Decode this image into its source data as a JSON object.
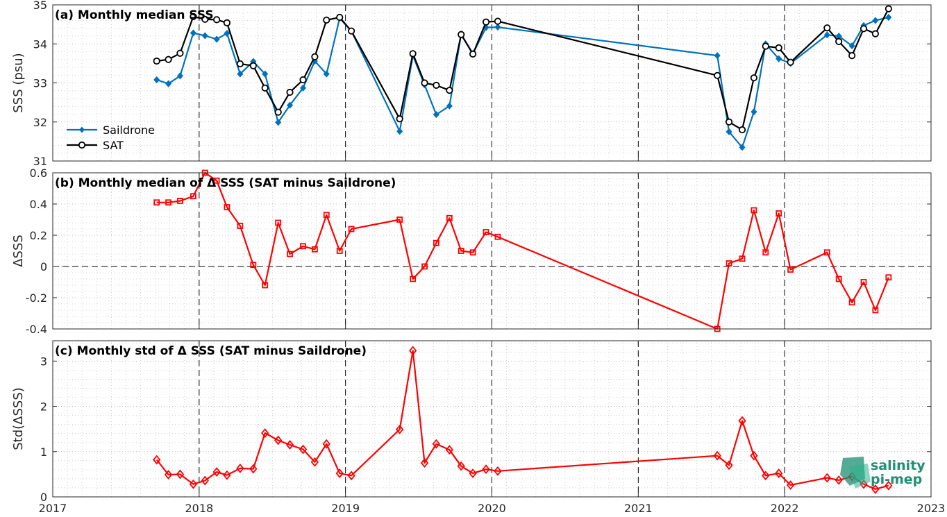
{
  "chart_data": [
    {
      "type": "line",
      "title": "(a) Monthly median SSS",
      "ylabel": "SSS (psu)",
      "xlim": [
        2017,
        2023
      ],
      "ylim": [
        31,
        35
      ],
      "yticks": [
        "31",
        "32",
        "33",
        "34",
        "35"
      ],
      "grid": true,
      "legend_position": "bottom-left",
      "x": [
        2017.71,
        2017.79,
        2017.87,
        2017.96,
        2018.04,
        2018.12,
        2018.19,
        2018.28,
        2018.37,
        2018.45,
        2018.54,
        2018.62,
        2018.71,
        2018.79,
        2018.87,
        2018.96,
        2019.04,
        2019.37,
        2019.46,
        2019.54,
        2019.62,
        2019.71,
        2019.79,
        2019.87,
        2019.96,
        2020.04,
        2021.54,
        2021.62,
        2021.71,
        2021.79,
        2021.87,
        2021.96,
        2022.04,
        2022.29,
        2022.37,
        2022.46,
        2022.54,
        2022.62,
        2022.71
      ],
      "series": [
        {
          "name": "Saildrone",
          "color": "#0072BD",
          "marker": "diamond-filled",
          "values": [
            33.08,
            32.98,
            33.18,
            34.28,
            34.21,
            34.12,
            34.27,
            33.23,
            33.55,
            33.23,
            31.99,
            32.43,
            32.87,
            33.56,
            33.23,
            34.66,
            34.33,
            31.76,
            33.7,
            32.95,
            32.19,
            32.41,
            34.25,
            33.75,
            34.42,
            34.43,
            33.7,
            31.75,
            31.35,
            32.26,
            34.0,
            33.62,
            33.5,
            34.23,
            34.2,
            33.95,
            34.47,
            34.6,
            34.68
          ]
        },
        {
          "name": "SAT",
          "color": "#000000",
          "marker": "circle-open",
          "values": [
            33.56,
            33.6,
            33.76,
            34.7,
            34.63,
            34.62,
            34.54,
            33.49,
            33.44,
            32.87,
            32.25,
            32.76,
            33.08,
            33.67,
            34.61,
            34.68,
            34.33,
            32.08,
            33.75,
            33.0,
            32.94,
            32.81,
            34.24,
            33.74,
            34.56,
            34.58,
            33.19,
            32.0,
            31.8,
            33.13,
            33.94,
            33.9,
            33.53,
            34.41,
            34.06,
            33.7,
            34.39,
            34.26,
            34.9
          ]
        }
      ]
    },
    {
      "type": "line",
      "title": "(b) Monthly median of Δ SSS (SAT minus Saildrone)",
      "ylabel": "ΔSSS",
      "xlim": [
        2017,
        2023
      ],
      "ylim": [
        -0.4,
        0.6
      ],
      "yticks": [
        "-0.4",
        "-0.2",
        "0",
        "0.2",
        "0.4",
        "0.6"
      ],
      "zero_line": "dashed",
      "grid": true,
      "x": [
        2017.71,
        2017.79,
        2017.87,
        2017.96,
        2018.04,
        2018.12,
        2018.19,
        2018.28,
        2018.37,
        2018.45,
        2018.54,
        2018.62,
        2018.71,
        2018.79,
        2018.87,
        2018.96,
        2019.04,
        2019.37,
        2019.46,
        2019.54,
        2019.62,
        2019.71,
        2019.79,
        2019.87,
        2019.96,
        2020.04,
        2021.54,
        2021.62,
        2021.71,
        2021.79,
        2021.87,
        2021.96,
        2022.04,
        2022.29,
        2022.37,
        2022.46,
        2022.54,
        2022.62,
        2022.71
      ],
      "series": [
        {
          "color": "#FF0000",
          "marker": "square-open",
          "values": [
            0.41,
            0.41,
            0.42,
            0.45,
            0.6,
            0.55,
            0.38,
            0.26,
            0.01,
            -0.12,
            0.28,
            0.08,
            0.13,
            0.11,
            0.33,
            0.1,
            0.24,
            0.3,
            -0.08,
            0.0,
            0.15,
            0.31,
            0.1,
            0.09,
            0.22,
            0.19,
            -0.4,
            0.02,
            0.05,
            0.36,
            0.09,
            0.34,
            -0.02,
            0.09,
            -0.08,
            -0.23,
            -0.1,
            -0.28,
            -0.07
          ]
        }
      ]
    },
    {
      "type": "line",
      "title": "(c) Monthly std of Δ SSS (SAT minus Saildrone)",
      "ylabel": "Std(ΔSSS)",
      "xlabel": "",
      "xlim": [
        2017,
        2023
      ],
      "ylim": [
        0,
        3.45
      ],
      "yticks": [
        "0",
        "1",
        "2",
        "3"
      ],
      "xticks": [
        "2017",
        "2018",
        "2019",
        "2020",
        "2021",
        "2022",
        "2023"
      ],
      "grid": true,
      "x": [
        2017.71,
        2017.79,
        2017.87,
        2017.96,
        2018.04,
        2018.12,
        2018.19,
        2018.28,
        2018.37,
        2018.45,
        2018.54,
        2018.62,
        2018.71,
        2018.79,
        2018.87,
        2018.96,
        2019.04,
        2019.37,
        2019.46,
        2019.54,
        2019.62,
        2019.71,
        2019.79,
        2019.87,
        2019.96,
        2020.04,
        2021.54,
        2021.62,
        2021.71,
        2021.79,
        2021.87,
        2021.96,
        2022.04,
        2022.29,
        2022.37,
        2022.46,
        2022.54,
        2022.62,
        2022.71
      ],
      "series": [
        {
          "color": "#FF0000",
          "marker": "diamond-open",
          "values": [
            0.82,
            0.49,
            0.5,
            0.28,
            0.36,
            0.55,
            0.48,
            0.63,
            0.62,
            1.41,
            1.25,
            1.15,
            1.05,
            0.77,
            1.17,
            0.52,
            0.47,
            1.49,
            3.23,
            0.75,
            1.17,
            1.04,
            0.68,
            0.52,
            0.61,
            0.57,
            0.91,
            0.7,
            1.68,
            0.91,
            0.47,
            0.52,
            0.26,
            0.42,
            0.37,
            0.45,
            0.28,
            0.17,
            0.25
          ]
        }
      ]
    }
  ],
  "logo": {
    "line1": "salinity",
    "line2": "pi-mep"
  },
  "colors": {
    "saildrone": "#0072BD",
    "sat": "#000000",
    "delta": "#FF0000",
    "logo": "#1f8f73"
  }
}
